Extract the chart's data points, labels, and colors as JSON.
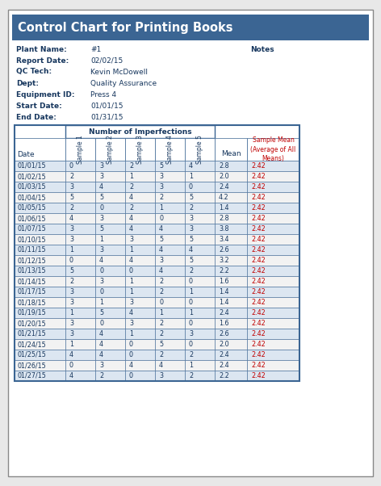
{
  "title": "Control Chart for Printing Books",
  "title_bg": "#3b6593",
  "title_color": "white",
  "info_labels": [
    "Plant Name:",
    "Report Date:",
    "QC Tech:",
    "Dept:",
    "Equipment ID:",
    "Start Date:",
    "End Date:"
  ],
  "info_values": [
    "#1",
    "02/02/15",
    "Kevin McDowell",
    "Quality Assurance",
    "Press 4",
    "01/01/15",
    "01/31/15"
  ],
  "notes_label": "Notes",
  "header_group": "Number of Imperfections",
  "col_headers": [
    "Sample 1",
    "Sample 2",
    "Sample 3",
    "Sample 4",
    "Sample 5",
    "Mean",
    "Sample Mean\n(Average of All\nMeans)"
  ],
  "date_col": [
    "01/01/15",
    "01/02/15",
    "01/03/15",
    "01/04/15",
    "01/05/15",
    "01/06/15",
    "01/07/15",
    "01/10/15",
    "01/11/15",
    "01/12/15",
    "01/13/15",
    "01/14/15",
    "01/17/15",
    "01/18/15",
    "01/19/15",
    "01/20/15",
    "01/21/15",
    "01/24/15",
    "01/25/15",
    "01/26/15",
    "01/27/15"
  ],
  "sample1": [
    0,
    2,
    3,
    5,
    2,
    4,
    3,
    3,
    1,
    0,
    5,
    2,
    3,
    3,
    1,
    3,
    3,
    1,
    4,
    0,
    4
  ],
  "sample2": [
    3,
    3,
    4,
    5,
    0,
    3,
    5,
    1,
    3,
    4,
    0,
    3,
    0,
    1,
    5,
    0,
    4,
    4,
    4,
    3,
    2
  ],
  "sample3": [
    2,
    1,
    2,
    4,
    2,
    4,
    4,
    3,
    1,
    4,
    0,
    1,
    1,
    3,
    4,
    3,
    1,
    0,
    0,
    4,
    0
  ],
  "sample4": [
    5,
    3,
    3,
    2,
    1,
    0,
    4,
    5,
    4,
    3,
    4,
    2,
    2,
    0,
    1,
    2,
    2,
    5,
    2,
    4,
    3
  ],
  "sample5": [
    4,
    1,
    0,
    5,
    2,
    3,
    3,
    5,
    4,
    5,
    2,
    0,
    1,
    0,
    1,
    0,
    3,
    0,
    2,
    1,
    2
  ],
  "mean": [
    "2.8",
    "2.0",
    "2.4",
    "4.2",
    "1.4",
    "2.8",
    "3.8",
    "3.4",
    "2.6",
    "3.2",
    "2.2",
    "1.6",
    "1.4",
    "1.4",
    "2.4",
    "1.6",
    "2.6",
    "2.0",
    "2.4",
    "2.4",
    "2.2"
  ],
  "sample_mean": [
    "2.42",
    "2.42",
    "2.42",
    "2.42",
    "2.42",
    "2.42",
    "2.42",
    "2.42",
    "2.42",
    "2.42",
    "2.42",
    "2.42",
    "2.42",
    "2.42",
    "2.42",
    "2.42",
    "2.42",
    "2.42",
    "2.42",
    "2.42",
    "2.42"
  ],
  "table_border_color": "#3b6593",
  "header_border_color": "#3b6593",
  "row_alt_color": "#dce6f1",
  "row_normal_color": "#f2f2f2",
  "date_color": "#17375e",
  "data_color": "#17375e",
  "mean_color": "#17375e",
  "sample_mean_color": "#c00000",
  "header_text_color": "#17375e",
  "group_header_color": "#17375e",
  "info_label_color": "#17375e",
  "info_value_color": "#17375e",
  "page_bg": "white",
  "outer_bg": "#e8e8e8"
}
